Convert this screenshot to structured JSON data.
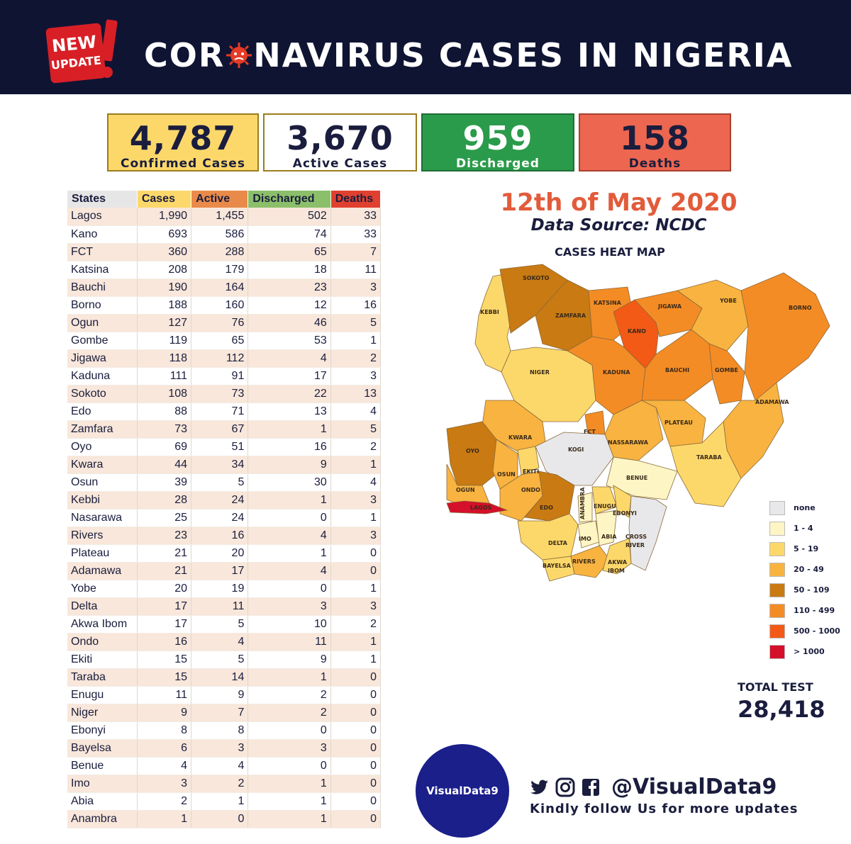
{
  "header": {
    "badge_line1": "NEW",
    "badge_line2": "UPDATE",
    "title_part1": "COR",
    "title_part2": "NAVIRUS CASES IN NIGERIA"
  },
  "stats": [
    {
      "value": "4,787",
      "label": "Confirmed Cases"
    },
    {
      "value": "3,670",
      "label": "Active Cases"
    },
    {
      "value": "959",
      "label": "Discharged"
    },
    {
      "value": "158",
      "label": "Deaths"
    }
  ],
  "table": {
    "headers": [
      "States",
      "Cases",
      "Active",
      "Discharged",
      "Deaths"
    ],
    "rows": [
      [
        "Lagos",
        "1,990",
        "1,455",
        "502",
        "33"
      ],
      [
        "Kano",
        "693",
        "586",
        "74",
        "33"
      ],
      [
        "FCT",
        "360",
        "288",
        "65",
        "7"
      ],
      [
        "Katsina",
        "208",
        "179",
        "18",
        "11"
      ],
      [
        "Bauchi",
        "190",
        "164",
        "23",
        "3"
      ],
      [
        "Borno",
        "188",
        "160",
        "12",
        "16"
      ],
      [
        "Ogun",
        "127",
        "76",
        "46",
        "5"
      ],
      [
        "Gombe",
        "119",
        "65",
        "53",
        "1"
      ],
      [
        "Jigawa",
        "118",
        "112",
        "4",
        "2"
      ],
      [
        "Kaduna",
        "111",
        "91",
        "17",
        "3"
      ],
      [
        "Sokoto",
        "108",
        "73",
        "22",
        "13"
      ],
      [
        "Edo",
        "88",
        "71",
        "13",
        "4"
      ],
      [
        "Zamfara",
        "73",
        "67",
        "1",
        "5"
      ],
      [
        "Oyo",
        "69",
        "51",
        "16",
        "2"
      ],
      [
        "Kwara",
        "44",
        "34",
        "9",
        "1"
      ],
      [
        "Osun",
        "39",
        "5",
        "30",
        "4"
      ],
      [
        "Kebbi",
        "28",
        "24",
        "1",
        "3"
      ],
      [
        "Nasarawa",
        "25",
        "24",
        "0",
        "1"
      ],
      [
        "Rivers",
        "23",
        "16",
        "4",
        "3"
      ],
      [
        "Plateau",
        "21",
        "20",
        "1",
        "0"
      ],
      [
        "Adamawa",
        "21",
        "17",
        "4",
        "0"
      ],
      [
        "Yobe",
        "20",
        "19",
        "0",
        "1"
      ],
      [
        "Delta",
        "17",
        "11",
        "3",
        "3"
      ],
      [
        "Akwa Ibom",
        "17",
        "5",
        "10",
        "2"
      ],
      [
        "Ondo",
        "16",
        "4",
        "11",
        "1"
      ],
      [
        "Ekiti",
        "15",
        "5",
        "9",
        "1"
      ],
      [
        "Taraba",
        "15",
        "14",
        "1",
        "0"
      ],
      [
        "Enugu",
        "11",
        "9",
        "2",
        "0"
      ],
      [
        "Niger",
        "9",
        "7",
        "2",
        "0"
      ],
      [
        "Ebonyi",
        "8",
        "8",
        "0",
        "0"
      ],
      [
        "Bayelsa",
        "6",
        "3",
        "3",
        "0"
      ],
      [
        "Benue",
        "4",
        "4",
        "0",
        "0"
      ],
      [
        "Imo",
        "3",
        "2",
        "1",
        "0"
      ],
      [
        "Abia",
        "2",
        "1",
        "1",
        "0"
      ],
      [
        "Anambra",
        "1",
        "0",
        "1",
        "0"
      ]
    ]
  },
  "date": "12th of May 2020",
  "source": "Data Source: NCDC",
  "map": {
    "title": "CASES HEAT MAP",
    "labels": {
      "sokoto": "SOKOTO",
      "kebbi": "KEBBI",
      "zamfara": "ZAMFARA",
      "katsina": "KATSINA",
      "kano": "KANO",
      "jigawa": "JIGAWA",
      "yobe": "YOBE",
      "borno": "BORNO",
      "niger": "NIGER",
      "kaduna": "KADUNA",
      "bauchi": "BAUCHI",
      "gombe": "GOMBE",
      "adamawa": "ADAMAWA",
      "kwara": "KWARA",
      "fct": "FCT",
      "plateau": "PLATEAU",
      "nassarawa": "NASSARAWA",
      "taraba": "TARABA",
      "oyo": "OYO",
      "osun": "OSUN",
      "ekiti": "EKITI",
      "kogi": "KOGI",
      "benue": "BENUE",
      "ogun": "OGUN",
      "ondo": "ONDO",
      "lagos": "LAGOS",
      "edo": "EDO",
      "anambra": "ANAMBRA",
      "enugu": "ENUGU",
      "ebonyi": "EBONYI",
      "delta": "DELTA",
      "imo": "IMO",
      "abia": "ABIA",
      "cross": "CROSS",
      "river": "RIVER",
      "bayelsa": "BAYELSA",
      "rivers": "RIVERS",
      "akwa": "AKWA",
      "ibom": "IBOM"
    }
  },
  "legend": [
    {
      "label": "none",
      "color": "#e8e8ea"
    },
    {
      "label": "1 - 4",
      "color": "#fdf5c4"
    },
    {
      "label": "5 - 19",
      "color": "#fcd86b"
    },
    {
      "label": "20 - 49",
      "color": "#f8b340"
    },
    {
      "label": "50 - 109",
      "color": "#c97a12"
    },
    {
      "label": "110 - 499",
      "color": "#f48c25"
    },
    {
      "label": "500 - 1000",
      "color": "#f25a16"
    },
    {
      "label": "> 1000",
      "color": "#d4102a"
    }
  ],
  "total_test": {
    "label": "TOTAL TEST",
    "value": "28,418"
  },
  "footer": {
    "logo_text": "VisualData9",
    "handle": "@VisualData9",
    "follow_text": "Kindly follow Us for more updates",
    "icons": [
      "twitter-icon",
      "instagram-icon",
      "facebook-icon"
    ]
  }
}
